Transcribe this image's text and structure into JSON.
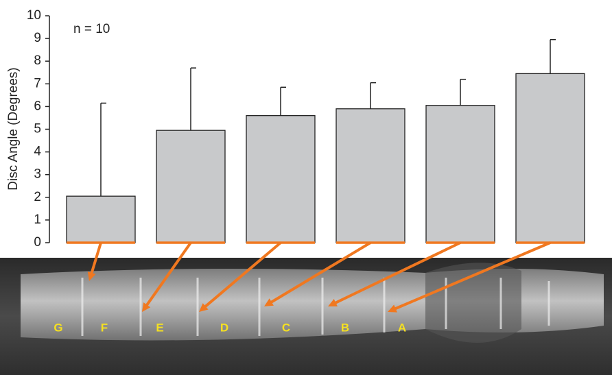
{
  "chart_data": {
    "type": "bar",
    "ylabel": "Disc Angle (Degrees)",
    "annotation": "n = 10",
    "categories": [
      null,
      null,
      null,
      null,
      null,
      null
    ],
    "values": [
      2.05,
      4.95,
      5.6,
      5.9,
      6.05,
      7.45
    ],
    "errors": [
      4.1,
      2.75,
      1.25,
      1.15,
      1.15,
      1.5
    ],
    "color": "#c8c9cb",
    "ylim": [
      0,
      10
    ],
    "yticks": [
      0,
      1,
      2,
      3,
      4,
      5,
      6,
      7,
      8,
      9,
      10
    ],
    "grid": false,
    "image_labels": [
      "G",
      "F",
      "E",
      "D",
      "C",
      "B",
      "A"
    ]
  }
}
